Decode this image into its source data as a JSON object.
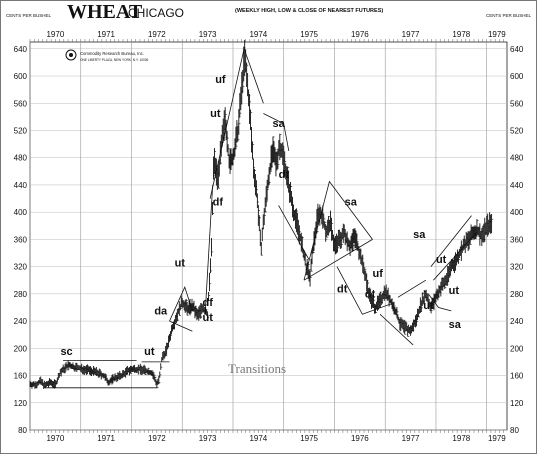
{
  "header": {
    "title": "WHEAT",
    "subtitle": "CHICAGO",
    "note": "(WEEKLY HIGH, LOW & CLOSE OF NEAREST FUTURES)",
    "units_left": "CENTS PER BUSHEL",
    "units_right": "CENTS PER BUSHEL"
  },
  "publisher": {
    "name": "Commodity Research Bureau, Inc.",
    "address": "ONE LIBERTY PLAZA, NEW YORK, N.Y. 10006"
  },
  "watermark": "Transitions",
  "chart_data": {
    "type": "bar",
    "subtype": "weekly high-low-close (OHLC) price bars with chart-pattern annotations",
    "title": "WHEAT CHICAGO",
    "subtitle": "(WEEKLY HIGH, LOW & CLOSE OF NEAREST FUTURES)",
    "ylabel": "CENTS PER BUSHEL",
    "ylim": [
      80,
      650
    ],
    "yticks": [
      80,
      120,
      160,
      200,
      240,
      280,
      320,
      360,
      400,
      440,
      480,
      520,
      560,
      600,
      640
    ],
    "xlim": [
      1970.0,
      1979.4
    ],
    "year_labels": [
      {
        "label": "1970",
        "x": 1970.5
      },
      {
        "label": "1971",
        "x": 1971.5
      },
      {
        "label": "1972",
        "x": 1972.5
      },
      {
        "label": "1973",
        "x": 1973.5
      },
      {
        "label": "1974",
        "x": 1974.5
      },
      {
        "label": "1975",
        "x": 1975.5
      },
      {
        "label": "1976",
        "x": 1976.5
      },
      {
        "label": "1977",
        "x": 1977.5
      },
      {
        "label": "1978",
        "x": 1978.5
      },
      {
        "label": "1979",
        "x": 1979.2
      }
    ],
    "price_path": [
      [
        1970.0,
        148
      ],
      [
        1970.1,
        146
      ],
      [
        1970.2,
        152
      ],
      [
        1970.3,
        145
      ],
      [
        1970.4,
        150
      ],
      [
        1970.5,
        147
      ],
      [
        1970.6,
        165
      ],
      [
        1970.75,
        175
      ],
      [
        1970.9,
        172
      ],
      [
        1971.0,
        170
      ],
      [
        1971.15,
        168
      ],
      [
        1971.3,
        165
      ],
      [
        1971.45,
        160
      ],
      [
        1971.55,
        150
      ],
      [
        1971.65,
        156
      ],
      [
        1971.8,
        160
      ],
      [
        1971.95,
        168
      ],
      [
        1972.1,
        170
      ],
      [
        1972.25,
        168
      ],
      [
        1972.4,
        164
      ],
      [
        1972.5,
        148
      ],
      [
        1972.55,
        155
      ],
      [
        1972.6,
        185
      ],
      [
        1972.7,
        200
      ],
      [
        1972.8,
        230
      ],
      [
        1972.9,
        250
      ],
      [
        1973.0,
        268
      ],
      [
        1973.1,
        258
      ],
      [
        1973.2,
        262
      ],
      [
        1973.3,
        248
      ],
      [
        1973.4,
        260
      ],
      [
        1973.5,
        250
      ],
      [
        1973.58,
        350
      ],
      [
        1973.62,
        480
      ],
      [
        1973.7,
        450
      ],
      [
        1973.78,
        500
      ],
      [
        1973.85,
        540
      ],
      [
        1973.93,
        470
      ],
      [
        1974.0,
        480
      ],
      [
        1974.1,
        520
      ],
      [
        1974.17,
        580
      ],
      [
        1974.23,
        630
      ],
      [
        1974.32,
        560
      ],
      [
        1974.4,
        470
      ],
      [
        1974.48,
        420
      ],
      [
        1974.55,
        345
      ],
      [
        1974.62,
        400
      ],
      [
        1974.7,
        450
      ],
      [
        1974.78,
        490
      ],
      [
        1974.85,
        470
      ],
      [
        1974.92,
        500
      ],
      [
        1975.0,
        480
      ],
      [
        1975.1,
        440
      ],
      [
        1975.2,
        400
      ],
      [
        1975.28,
        380
      ],
      [
        1975.36,
        350
      ],
      [
        1975.44,
        320
      ],
      [
        1975.52,
        305
      ],
      [
        1975.6,
        360
      ],
      [
        1975.68,
        400
      ],
      [
        1975.76,
        395
      ],
      [
        1975.84,
        370
      ],
      [
        1975.92,
        385
      ],
      [
        1976.0,
        350
      ],
      [
        1976.1,
        360
      ],
      [
        1976.2,
        370
      ],
      [
        1976.3,
        350
      ],
      [
        1976.4,
        365
      ],
      [
        1976.5,
        340
      ],
      [
        1976.6,
        310
      ],
      [
        1976.7,
        275
      ],
      [
        1976.8,
        260
      ],
      [
        1976.9,
        270
      ],
      [
        1977.0,
        285
      ],
      [
        1977.1,
        270
      ],
      [
        1977.2,
        255
      ],
      [
        1977.3,
        235
      ],
      [
        1977.4,
        230
      ],
      [
        1977.5,
        225
      ],
      [
        1977.6,
        240
      ],
      [
        1977.7,
        265
      ],
      [
        1977.8,
        280
      ],
      [
        1977.9,
        260
      ],
      [
        1978.0,
        275
      ],
      [
        1978.1,
        290
      ],
      [
        1978.2,
        300
      ],
      [
        1978.3,
        320
      ],
      [
        1978.4,
        330
      ],
      [
        1978.5,
        345
      ],
      [
        1978.6,
        355
      ],
      [
        1978.7,
        365
      ],
      [
        1978.8,
        375
      ],
      [
        1978.9,
        365
      ],
      [
        1979.0,
        380
      ],
      [
        1979.1,
        385
      ]
    ],
    "lines": [
      {
        "name": "sc-top",
        "points": [
          [
            1970.65,
            182
          ],
          [
            1972.1,
            182
          ]
        ]
      },
      {
        "name": "sc-bottom",
        "points": [
          [
            1970.3,
            142
          ],
          [
            1972.5,
            142
          ]
        ]
      },
      {
        "name": "ut-1972",
        "points": [
          [
            1972.2,
            180
          ],
          [
            1972.75,
            180
          ]
        ]
      },
      {
        "name": "da-triangle-upper",
        "points": [
          [
            1972.75,
            240
          ],
          [
            1973.05,
            290
          ],
          [
            1973.2,
            255
          ]
        ]
      },
      {
        "name": "da-triangle-lower",
        "points": [
          [
            1972.75,
            240
          ],
          [
            1973.2,
            225
          ]
        ]
      },
      {
        "name": "uf-wedge-left",
        "points": [
          [
            1973.55,
            420
          ],
          [
            1974.22,
            640
          ]
        ]
      },
      {
        "name": "uf-wedge-right",
        "points": [
          [
            1974.22,
            640
          ],
          [
            1974.6,
            560
          ]
        ]
      },
      {
        "name": "sa-1974",
        "points": [
          [
            1974.6,
            545
          ],
          [
            1975.0,
            530
          ],
          [
            1975.1,
            490
          ]
        ]
      },
      {
        "name": "df-line",
        "points": [
          [
            1973.45,
            250
          ],
          [
            1973.6,
            440
          ]
        ]
      },
      {
        "name": "dt-1975",
        "points": [
          [
            1974.9,
            410
          ],
          [
            1975.5,
            330
          ]
        ]
      },
      {
        "name": "big-triangle-upper",
        "points": [
          [
            1975.4,
            300
          ],
          [
            1975.9,
            445
          ],
          [
            1976.75,
            360
          ]
        ]
      },
      {
        "name": "big-triangle-lower",
        "points": [
          [
            1975.4,
            300
          ],
          [
            1976.75,
            360
          ]
        ]
      },
      {
        "name": "dt-1976",
        "points": [
          [
            1976.05,
            320
          ],
          [
            1976.55,
            250
          ],
          [
            1977.1,
            265
          ]
        ]
      },
      {
        "name": "uf-1977",
        "points": [
          [
            1976.9,
            250
          ],
          [
            1977.55,
            205
          ]
        ]
      },
      {
        "name": "ut-1977",
        "points": [
          [
            1977.25,
            275
          ],
          [
            1977.8,
            300
          ]
        ]
      },
      {
        "name": "sa-1978",
        "points": [
          [
            1977.85,
            280
          ],
          [
            1978.05,
            260
          ],
          [
            1978.3,
            255
          ]
        ]
      },
      {
        "name": "up-channel-1978",
        "points": [
          [
            1977.9,
            320
          ],
          [
            1978.7,
            395
          ]
        ]
      },
      {
        "name": "up-channel-1978-lower",
        "points": [
          [
            1977.95,
            300
          ],
          [
            1978.8,
            370
          ]
        ]
      }
    ],
    "annotations": [
      {
        "text": "sc",
        "x": 1970.6,
        "y": 190
      },
      {
        "text": "ut",
        "x": 1972.25,
        "y": 190
      },
      {
        "text": "da",
        "x": 1972.45,
        "y": 250
      },
      {
        "text": "ut",
        "x": 1972.85,
        "y": 320
      },
      {
        "text": "df",
        "x": 1973.4,
        "y": 262
      },
      {
        "text": "ut",
        "x": 1973.4,
        "y": 240
      },
      {
        "text": "ut",
        "x": 1973.55,
        "y": 540
      },
      {
        "text": "uf",
        "x": 1973.65,
        "y": 590
      },
      {
        "text": "df",
        "x": 1973.6,
        "y": 410
      },
      {
        "text": "sa",
        "x": 1974.78,
        "y": 525
      },
      {
        "text": "dt",
        "x": 1974.9,
        "y": 450
      },
      {
        "text": "sa",
        "x": 1976.2,
        "y": 410
      },
      {
        "text": "dt",
        "x": 1976.05,
        "y": 282
      },
      {
        "text": "uf",
        "x": 1976.75,
        "y": 305
      },
      {
        "text": "dt",
        "x": 1976.6,
        "y": 275
      },
      {
        "text": "ut",
        "x": 1977.75,
        "y": 258
      },
      {
        "text": "sa",
        "x": 1977.55,
        "y": 362
      },
      {
        "text": "ut",
        "x": 1978.0,
        "y": 325
      },
      {
        "text": "ut",
        "x": 1978.25,
        "y": 280
      },
      {
        "text": "sa",
        "x": 1978.25,
        "y": 230
      }
    ]
  }
}
